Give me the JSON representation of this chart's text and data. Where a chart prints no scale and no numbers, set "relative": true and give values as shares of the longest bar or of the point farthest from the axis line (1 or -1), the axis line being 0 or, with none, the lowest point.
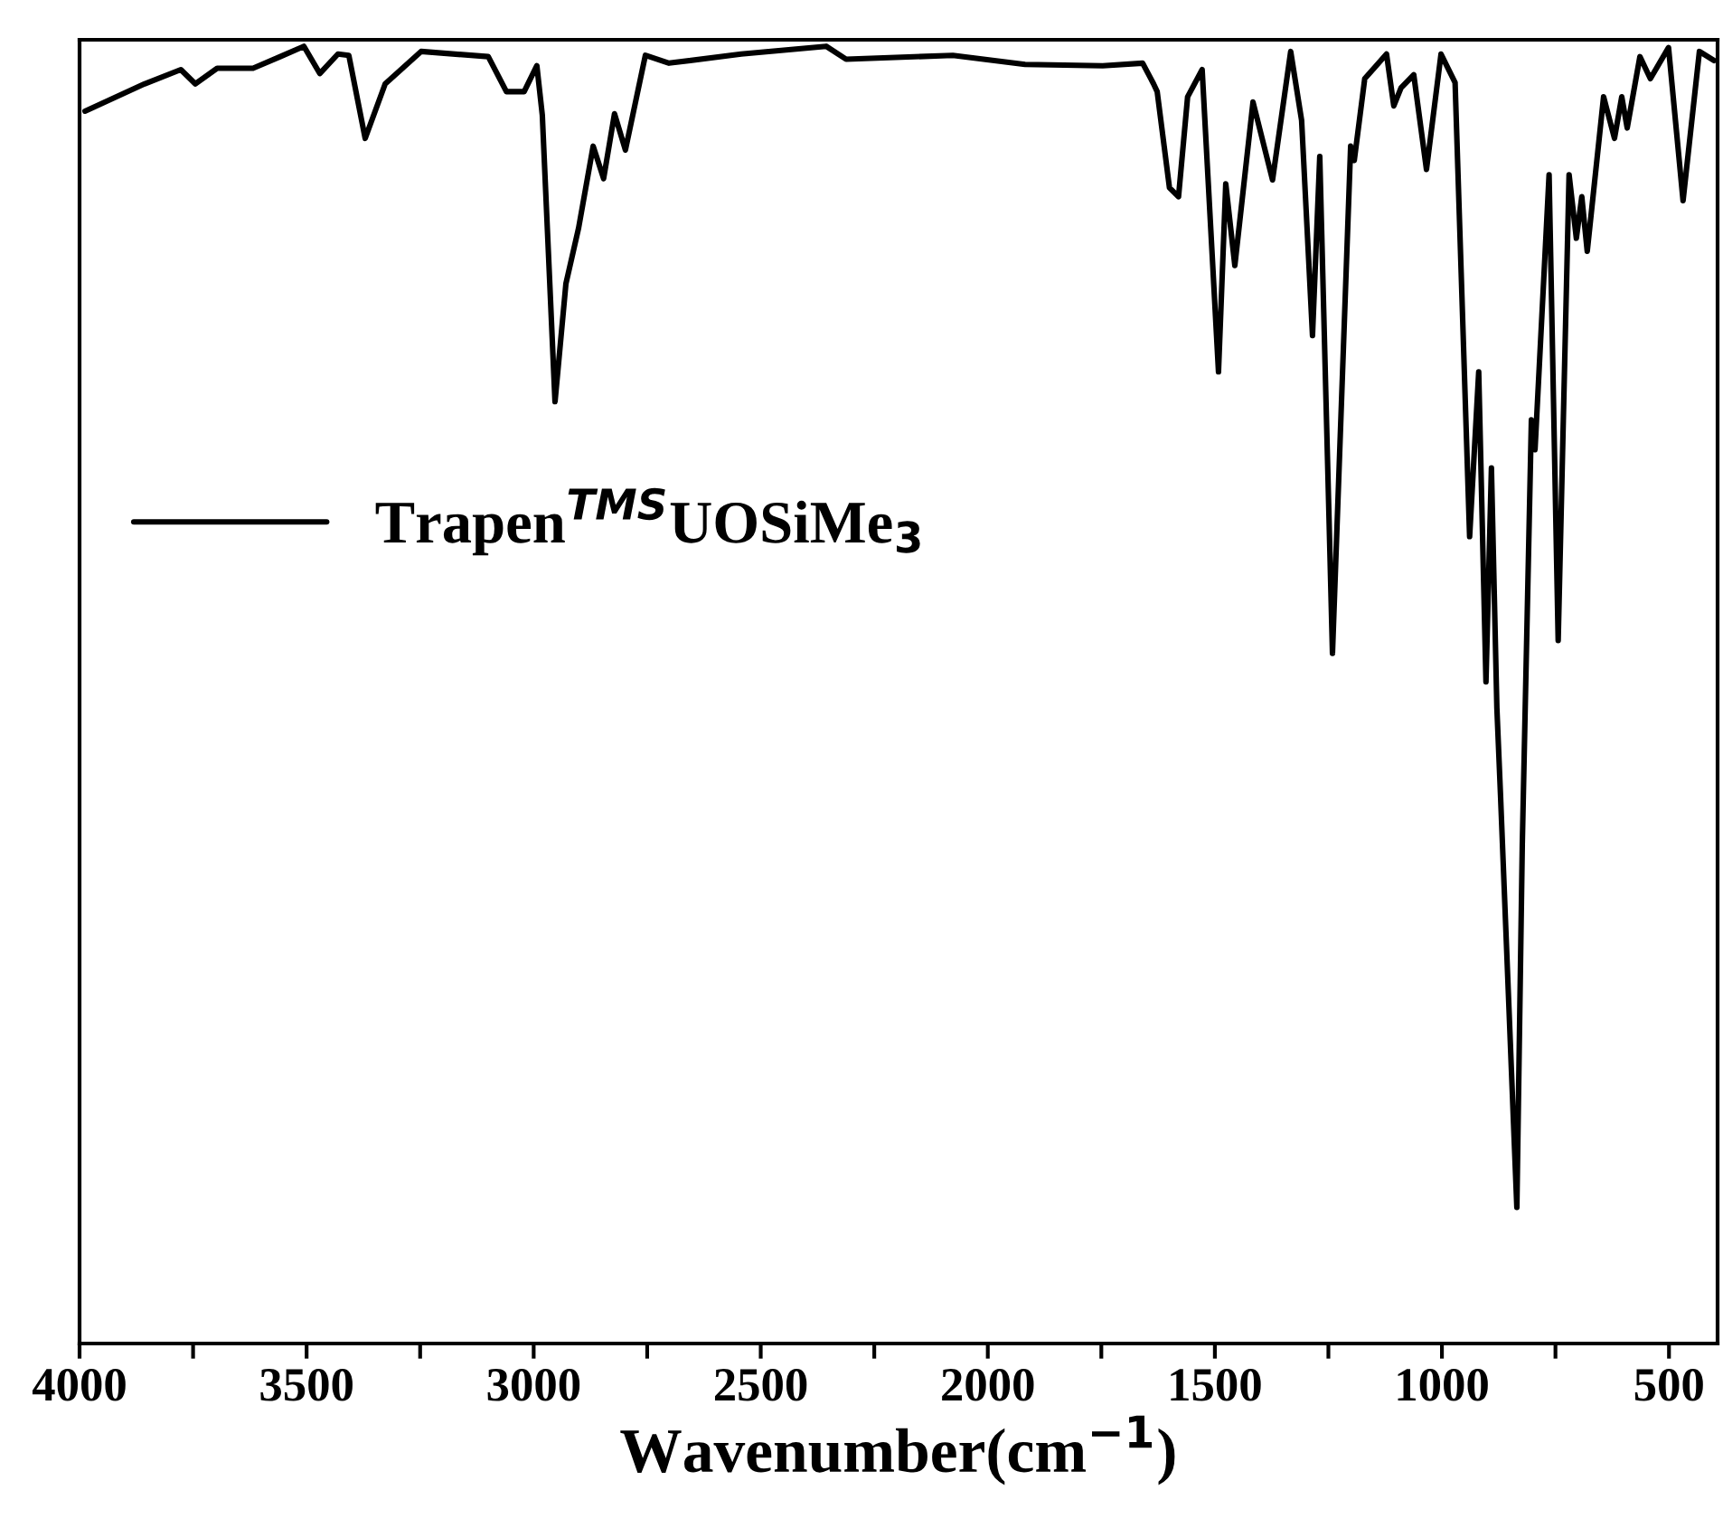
{
  "chart_data": {
    "type": "line",
    "relative": true,
    "xlabel": "Wavenumber(cm$^{−1}$)",
    "xlim": [
      4000,
      393
    ],
    "xticks": [
      4000,
      {
        "value": 3750,
        "label": null
      },
      3500,
      {
        "value": 3250,
        "label": null
      },
      3000,
      {
        "value": 2750,
        "label": null
      },
      2500,
      {
        "value": 2250,
        "label": null
      },
      2000,
      {
        "value": 1750,
        "label": null
      },
      1500,
      {
        "value": 1250,
        "label": null
      },
      1000,
      {
        "value": 750,
        "label": null
      },
      500
    ],
    "tick_labels": "x",
    "legend": "left",
    "grid": false,
    "marker": "none",
    "line_style": "solid",
    "series": [
      {
        "name": "Trapen$^{TMS}$UOSiMe$_{3}$",
        "color": "#000000",
        "x": [
          3988,
          3857,
          3777,
          3745,
          3697,
          3618,
          3558,
          3506,
          3471,
          3431,
          3407,
          3371,
          3327,
          3248,
          3100,
          3060,
          3021,
          2993,
          2981,
          2953,
          2929,
          2901,
          2869,
          2846,
          2822,
          2798,
          2754,
          2702,
          2543,
          2356,
          2312,
          2077,
          1918,
          1747,
          1659,
          1635,
          1627,
          1600,
          1580,
          1560,
          1528,
          1492,
          1476,
          1456,
          1416,
          1373,
          1333,
          1309,
          1285,
          1269,
          1241,
          1201,
          1193,
          1170,
          1122,
          1106,
          1090,
          1062,
          1034,
          1002,
          971,
          939,
          919,
          903,
          891,
          879,
          871,
          835,
          823,
          803,
          795,
          764,
          744,
          720,
          704,
          692,
          680,
          644,
          620,
          604,
          592,
          564,
          541,
          501,
          469,
          433,
          401
        ],
        "values": [
          0.95,
          0.971,
          0.982,
          0.971,
          0.983,
          0.983,
          0.992,
          1.0,
          0.979,
          0.994,
          0.993,
          0.929,
          0.971,
          0.996,
          0.992,
          0.965,
          0.965,
          0.985,
          0.947,
          0.726,
          0.817,
          0.86,
          0.923,
          0.898,
          0.948,
          0.92,
          0.993,
          0.987,
          0.994,
          1.0,
          0.99,
          0.993,
          0.986,
          0.985,
          0.987,
          0.971,
          0.965,
          0.891,
          0.884,
          0.961,
          0.982,
          0.749,
          0.894,
          0.831,
          0.957,
          0.897,
          0.996,
          0.943,
          0.777,
          0.915,
          0.532,
          0.923,
          0.912,
          0.975,
          0.994,
          0.954,
          0.968,
          0.978,
          0.905,
          0.994,
          0.972,
          0.622,
          0.749,
          0.51,
          0.675,
          0.49,
          0.423,
          0.105,
          0.385,
          0.712,
          0.689,
          0.901,
          0.542,
          0.901,
          0.852,
          0.884,
          0.842,
          0.961,
          0.929,
          0.961,
          0.937,
          0.992,
          0.975,
          0.999,
          0.881,
          0.996,
          0.989
        ]
      }
    ]
  }
}
